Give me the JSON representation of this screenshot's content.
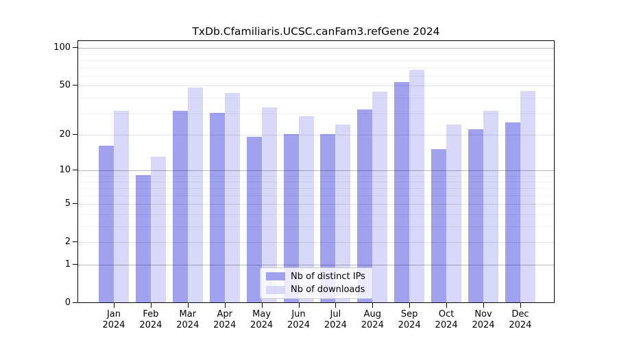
{
  "title": "TxDb.Cfamiliaris.UCSC.canFam3.refGene 2024",
  "legend": {
    "items": [
      {
        "label": "Nb of distinct IPs",
        "color": "#a0a2f0"
      },
      {
        "label": "Nb of downloads",
        "color": "#d8d9f8"
      }
    ]
  },
  "chart_data": {
    "type": "bar",
    "title": "TxDb.Cfamiliaris.UCSC.canFam3.refGene 2024",
    "scale": "log1p",
    "categories": [
      "Jan",
      "Feb",
      "Mar",
      "Apr",
      "May",
      "Jun",
      "Jul",
      "Aug",
      "Sep",
      "Oct",
      "Nov",
      "Dec"
    ],
    "year_label": "2024",
    "series": [
      {
        "name": "Nb of distinct IPs",
        "color": "#a0a2f0",
        "values": [
          16,
          9,
          31,
          30,
          19,
          20,
          20,
          32,
          53,
          15,
          22,
          25
        ]
      },
      {
        "name": "Nb of downloads",
        "color": "#d8d9f8",
        "values": [
          31,
          13,
          48,
          43,
          33,
          28,
          24,
          44,
          66,
          24,
          31,
          45
        ]
      }
    ],
    "yticks": [
      0,
      1,
      2,
      5,
      10,
      20,
      50,
      100
    ],
    "ytick_labels": [
      "0",
      "1",
      "2",
      "5",
      "10",
      "20",
      "50",
      "100"
    ],
    "ylim": [
      0,
      115
    ],
    "grid": "on",
    "legend_position": "bottom-center",
    "xlabel": "",
    "ylabel": ""
  }
}
